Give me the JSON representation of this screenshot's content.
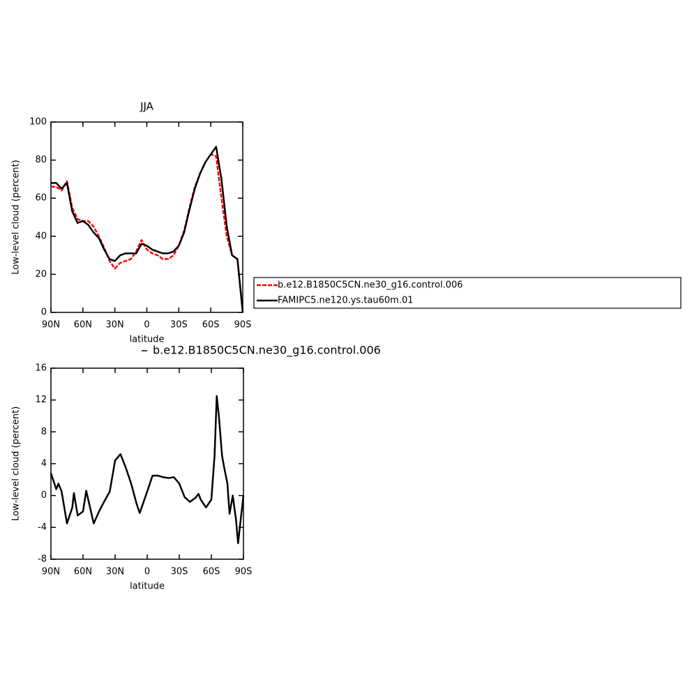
{
  "chart_data": [
    {
      "type": "line",
      "title": "JJA",
      "xlabel": "latitude",
      "ylabel": "Low-level cloud (percent)",
      "x": [
        90,
        85,
        80,
        75,
        70,
        65,
        60,
        55,
        50,
        45,
        40,
        35,
        30,
        25,
        20,
        15,
        10,
        5,
        0,
        -5,
        -10,
        -15,
        -20,
        -25,
        -30,
        -35,
        -40,
        -45,
        -50,
        -55,
        -60,
        -65,
        -70,
        -75,
        -80,
        -85,
        -90
      ],
      "series": [
        {
          "name": "b.e12.B1850C5CN.ne30_g16.control.006",
          "color": "#ff0000",
          "dashed": true,
          "values": [
            66,
            66,
            64,
            69,
            55,
            49,
            48,
            48,
            45,
            40,
            34,
            27,
            23,
            26,
            27,
            28,
            32,
            38,
            33,
            31,
            30,
            28,
            28,
            30,
            35,
            43,
            55,
            66,
            73,
            79,
            83,
            82,
            60,
            40,
            30,
            28,
            0
          ]
        },
        {
          "name": "FAMIPC5.ne120.ys.tau60m.01",
          "color": "#000000",
          "dashed": false,
          "values": [
            68,
            68,
            65,
            68,
            53,
            47,
            48,
            46,
            42,
            39,
            33,
            28,
            27,
            30,
            31,
            31,
            31,
            36,
            35,
            33,
            32,
            31,
            31,
            32,
            35,
            42,
            54,
            65,
            73,
            79,
            83,
            87,
            70,
            45,
            30,
            28,
            0
          ]
        }
      ],
      "xlim": [
        90,
        -90
      ],
      "xticks": [
        {
          "value": 90,
          "label": "90N"
        },
        {
          "value": 60,
          "label": "60N"
        },
        {
          "value": 30,
          "label": "30N"
        },
        0,
        {
          "value": -30,
          "label": "30S"
        },
        {
          "value": -60,
          "label": "60S"
        },
        {
          "value": -90,
          "label": "90S"
        }
      ],
      "ylim": [
        0,
        100
      ],
      "yticks": [
        0,
        20,
        40,
        60,
        80,
        100
      ],
      "legend": "right"
    },
    {
      "type": "line",
      "xlabel": "latitude",
      "ylabel": "Low-level cloud (percent)",
      "x": [
        90,
        85,
        83,
        80,
        75,
        70,
        68.5,
        65,
        60,
        57,
        50,
        45,
        40,
        35,
        30,
        25,
        20,
        15,
        10,
        7,
        0,
        -5,
        -10,
        -15,
        -20,
        -25,
        -30,
        -35,
        -40,
        -45,
        -48,
        -50,
        -55,
        -60,
        -63,
        -65,
        -67,
        -70,
        -72,
        -75,
        -77,
        -80,
        -83,
        -85,
        -87,
        -90
      ],
      "series": [
        {
          "name": "b.e12.B1850C5CN.ne30_g16.control.006",
          "color": "#000000",
          "dashed": false,
          "values": [
            2.8,
            0.8,
            1.5,
            0.5,
            -3.5,
            -1.5,
            0.3,
            -2.5,
            -2,
            0.6,
            -3.5,
            -2,
            -0.7,
            0.5,
            4.4,
            5.2,
            3.5,
            1.5,
            -1,
            -2.2,
            0.5,
            2.5,
            2.5,
            2.3,
            2.2,
            2.3,
            1.5,
            -0.2,
            -0.8,
            -0.3,
            0.2,
            -0.5,
            -1.5,
            -0.5,
            5,
            12.5,
            10,
            5,
            3.5,
            1.5,
            -2.3,
            0,
            -3,
            -6,
            -3.5,
            0
          ]
        }
      ],
      "xlim": [
        90,
        -90
      ],
      "xticks": [
        {
          "value": 90,
          "label": "90N"
        },
        {
          "value": 60,
          "label": "60N"
        },
        {
          "value": 30,
          "label": "30N"
        },
        0,
        {
          "value": -30,
          "label": "30S"
        },
        {
          "value": -60,
          "label": "60S"
        },
        {
          "value": -90,
          "label": "90S"
        }
      ],
      "ylim": [
        -8,
        16
      ],
      "yticks": [
        -8,
        -4,
        0,
        4,
        8,
        12,
        16
      ],
      "legend": "top"
    }
  ]
}
